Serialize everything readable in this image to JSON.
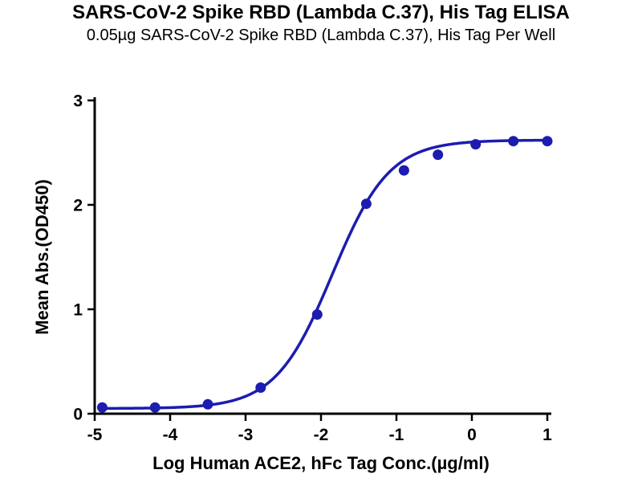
{
  "chart_data": {
    "type": "scatter",
    "title": "SARS-CoV-2 Spike RBD (Lambda C.37), His Tag ELISA",
    "subtitle": "0.05µg SARS-CoV-2 Spike RBD (Lambda C.37), His Tag Per Well",
    "xlabel": "Log Human ACE2, hFc Tag Conc.(µg/ml)",
    "ylabel": "Mean Abs.(OD450)",
    "xlim": [
      -5,
      1
    ],
    "ylim": [
      0,
      3
    ],
    "xticks": [
      -5,
      -4,
      -3,
      -2,
      -1,
      0,
      1
    ],
    "yticks": [
      0,
      1,
      2,
      3
    ],
    "grid": false,
    "legend": "none",
    "points": [
      {
        "x": -4.9,
        "y": 0.06
      },
      {
        "x": -4.2,
        "y": 0.06
      },
      {
        "x": -3.5,
        "y": 0.09
      },
      {
        "x": -2.8,
        "y": 0.25
      },
      {
        "x": -2.05,
        "y": 0.95
      },
      {
        "x": -1.4,
        "y": 2.01
      },
      {
        "x": -0.9,
        "y": 2.33
      },
      {
        "x": -0.45,
        "y": 2.48
      },
      {
        "x": 0.05,
        "y": 2.58
      },
      {
        "x": 0.55,
        "y": 2.61
      },
      {
        "x": 1.0,
        "y": 2.61
      }
    ],
    "fit_4pl": {
      "bottom": 0.05,
      "top": 2.62,
      "logEC50": -1.85,
      "hillslope": 1.15
    },
    "line_color": "#1C1CB0",
    "point_color": "#1C1CB0",
    "axis_color": "#000000",
    "background_color": "#FFFFFF"
  }
}
